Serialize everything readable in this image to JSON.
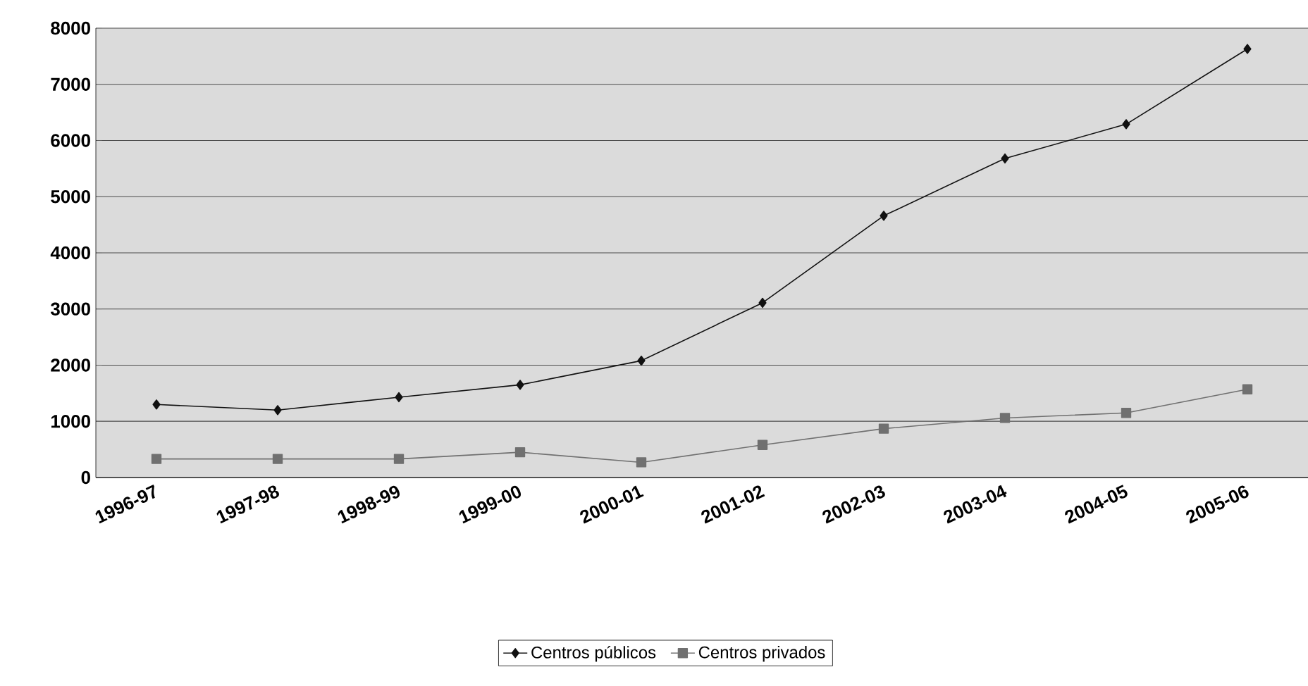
{
  "chart_data": {
    "type": "line",
    "categories": [
      "1996-97",
      "1997-98",
      "1998-99",
      "1999-00",
      "2000-01",
      "2001-02",
      "2002-03",
      "2003-04",
      "2004-05",
      "2005-06"
    ],
    "series": [
      {
        "name": "Centros públicos",
        "color": "#111111",
        "marker": "diamond",
        "values": [
          1300,
          1200,
          1430,
          1650,
          2080,
          3110,
          4660,
          5680,
          6290,
          7630
        ]
      },
      {
        "name": "Centros privados",
        "color": "#707070",
        "marker": "square",
        "values": [
          330,
          330,
          330,
          450,
          270,
          580,
          870,
          1060,
          1150,
          1570
        ]
      }
    ],
    "ylim": [
      0,
      8000
    ],
    "yticks": [
      0,
      1000,
      2000,
      3000,
      4000,
      5000,
      6000,
      7000,
      8000
    ],
    "grid": "y",
    "legend": "bottom"
  }
}
